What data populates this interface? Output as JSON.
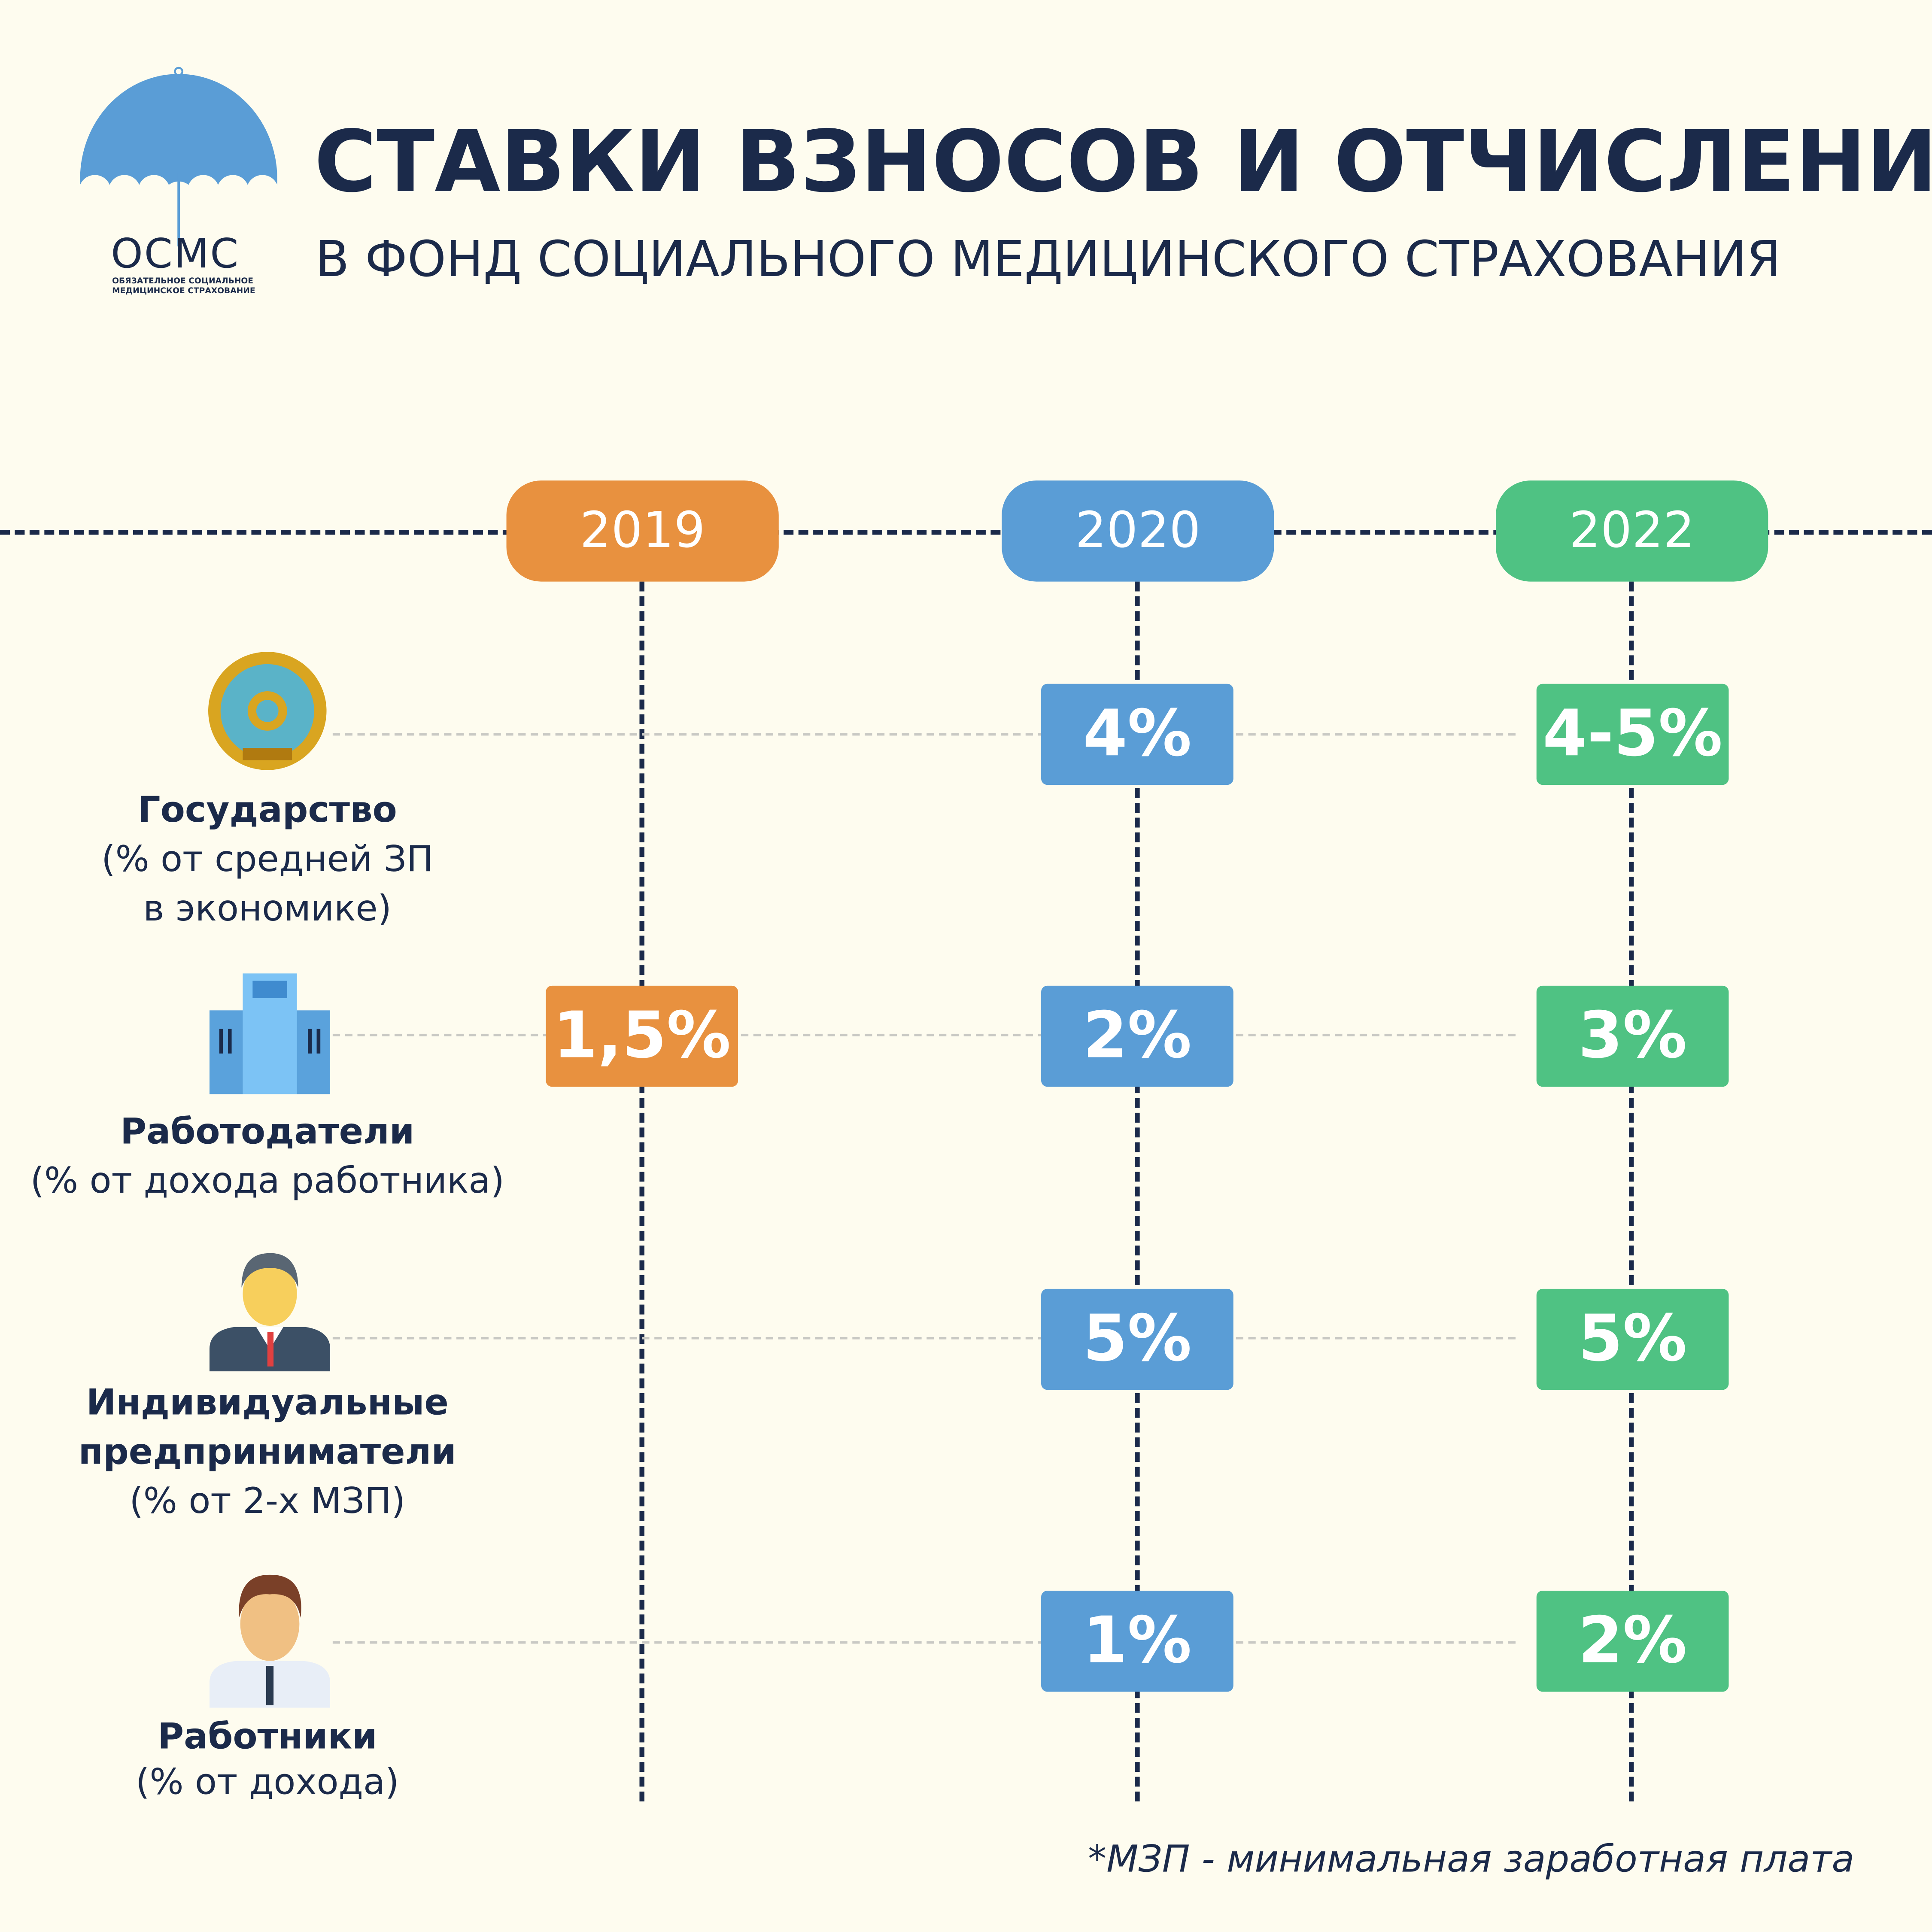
{
  "logo": {
    "text": "ОСМС",
    "caption_line1": "ОБЯЗАТЕЛЬНОЕ СОЦИАЛЬНОЕ",
    "caption_line2": "МЕДИЦИНСКОЕ СТРАХОВАНИЕ"
  },
  "header": {
    "title": "СТАВКИ ВЗНОСОВ И ОТЧИСЛЕНИЙ",
    "subtitle": "В ФОНД СОЦИАЛЬНОГО МЕДИЦИНСКОГО СТРАХОВАНИЯ"
  },
  "colors": {
    "2019": "#e8913f",
    "2020": "#5a9dd6",
    "2022": "#4fc283",
    "text": "#1b2a4a",
    "background": "#fefcef"
  },
  "years": [
    "2019",
    "2020",
    "2022"
  ],
  "rows": [
    {
      "name": "Государство",
      "lines": [
        "(% от средней ЗП",
        "в экономике)"
      ],
      "icon": "kazakhstan-emblem-icon",
      "values": [
        "",
        "4%",
        "4-5%"
      ]
    },
    {
      "name": "Работодатели",
      "lines": [
        "(% от дохода работника)"
      ],
      "icon": "office-building-icon",
      "values": [
        "1,5%",
        "2%",
        "3%"
      ]
    },
    {
      "name": "Индивидуальные",
      "name2": "предприниматели",
      "lines": [
        "(% от 2-х МЗП)"
      ],
      "icon": "businessman-icon",
      "values": [
        "",
        "5%",
        "5%"
      ]
    },
    {
      "name": "Работники",
      "lines": [
        "(% от дохода)"
      ],
      "icon": "employee-icon",
      "values": [
        "",
        "1%",
        "2%"
      ]
    }
  ],
  "footnote": "*МЗП - минимальная заработная плата"
}
